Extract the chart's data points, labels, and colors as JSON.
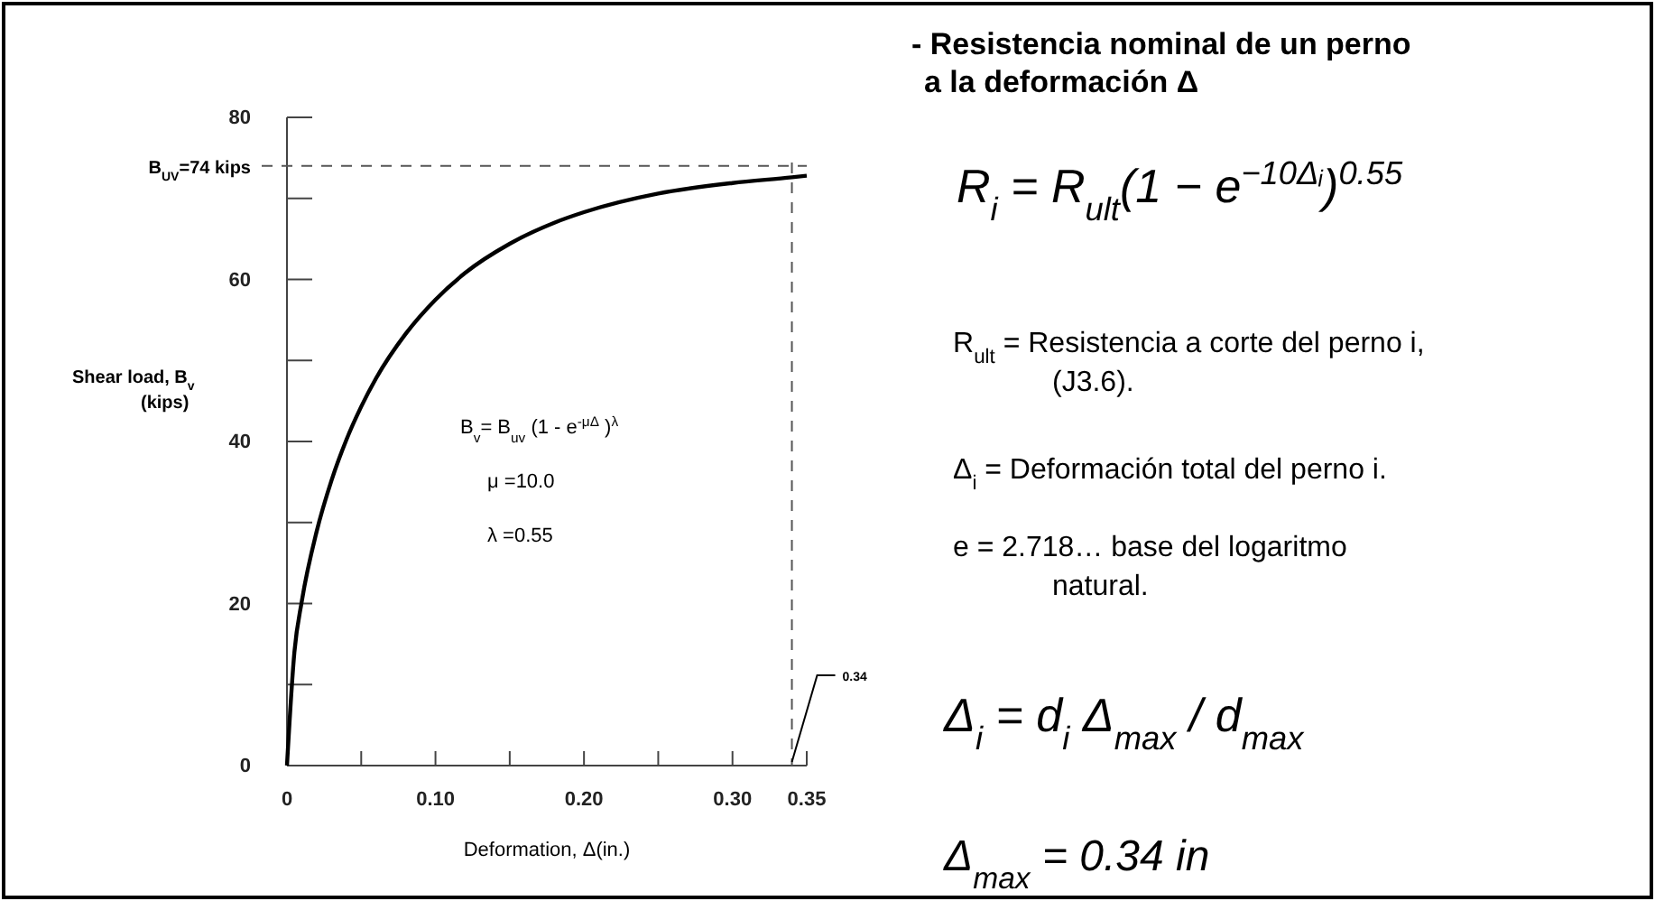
{
  "chart_data": {
    "type": "line",
    "title": "- Resistencia nominal de un  perno\na la deformación Δ",
    "xlabel": "Deformation, Δ(in.)",
    "ylabel": "Shear load, B$_{v}$\n(kips)",
    "x": [
      0,
      0.005,
      0.01,
      0.02,
      0.03,
      0.04,
      0.05,
      0.06,
      0.08,
      0.1,
      0.12,
      0.15,
      0.18,
      0.2,
      0.25,
      0.3,
      0.34,
      0.35
    ],
    "series": [
      {
        "color": "#000000",
        "values": [
          0,
          14.0,
          20.3,
          28.9,
          35.2,
          40.2,
          44.3,
          47.8,
          53.3,
          57.5,
          60.8,
          64.4,
          67.0,
          68.3,
          70.6,
          71.9,
          72.6,
          72.8
        ]
      }
    ],
    "xlim": [
      0,
      0.35
    ],
    "xticks": [
      0,
      {
        "value": 0.05,
        "label": null
      },
      {
        "value": 0.1,
        "label": "0.10"
      },
      {
        "value": 0.15,
        "label": null
      },
      {
        "value": 0.2,
        "label": "0.20"
      },
      {
        "value": 0.25,
        "label": null
      },
      {
        "value": 0.3,
        "label": "0.30"
      },
      0.35
    ],
    "ylim": [
      0,
      80
    ],
    "yticks": [
      0,
      {
        "value": 10,
        "label": null
      },
      20,
      {
        "value": 30,
        "label": null
      },
      40,
      {
        "value": 50,
        "label": null
      },
      60,
      {
        "value": 70,
        "label": null
      },
      80
    ],
    "ref_lines": [
      {
        "axis": "y",
        "value": 74,
        "label": "B$_{UV}$=74 kips",
        "line_style": "dashed"
      },
      {
        "axis": "x",
        "value": 0.34,
        "label": "0.34",
        "line_style": "dashed"
      }
    ],
    "line_style": "solid",
    "grid": false,
    "annotations": [
      "B$_{v}$= B$_{uv}$ (1 - e$^{-μΔ}$ )$^{λ}$",
      "μ =10.0",
      "λ =0.55",
      "R$_{i}$ = R$_{ult}$(1 − e$^{−10Δᵢ}$)$^{0.55}$",
      "R$_{ult}$ = Resistencia a corte del perno i,\n(J3.6).",
      "Δ$_{i}$ = Deformación total del perno i.",
      "e = 2.718… base del logaritmo\nnatural.",
      "Δ$_{i}$ = d$_{i}$ Δ$_{max}$ / d$_{max}$",
      "Δ$_{max}$ = 0.34 in"
    ]
  }
}
